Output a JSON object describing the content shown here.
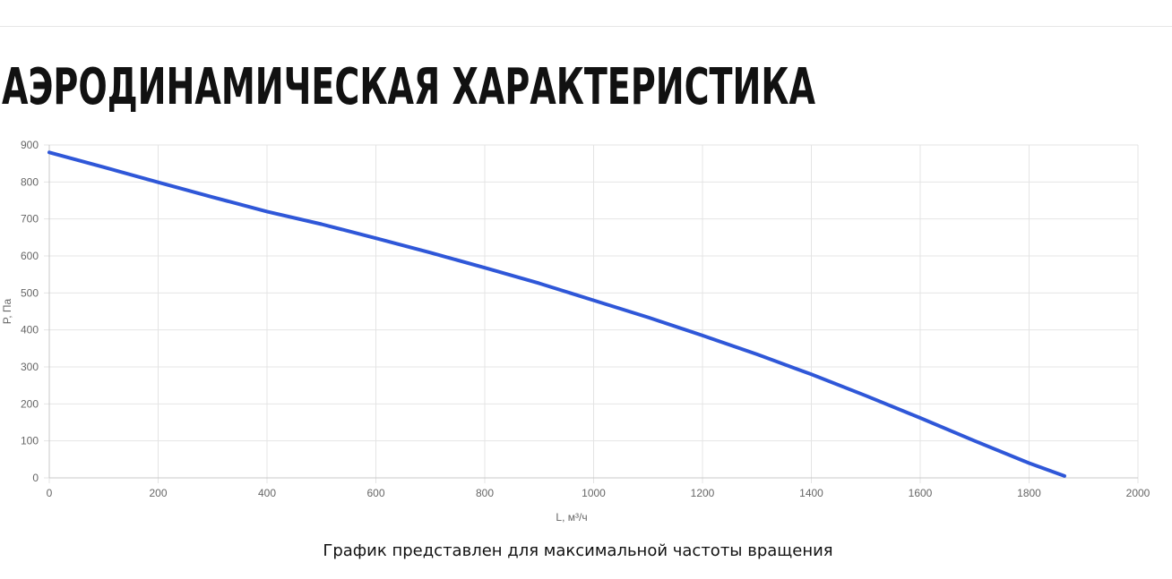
{
  "page": {
    "title": "АЭРОДИНАМИЧЕСКАЯ ХАРАКТЕРИСТИКА",
    "caption": "График представлен для максимальной частоты вращения"
  },
  "chart_data": {
    "type": "line",
    "xlabel": "L, м³/ч",
    "ylabel": "P, Па",
    "xlim": [
      0,
      2000
    ],
    "ylim": [
      0,
      900
    ],
    "xticks": [
      0,
      200,
      400,
      600,
      800,
      1000,
      1200,
      1400,
      1600,
      1800,
      2000
    ],
    "yticks": [
      0,
      100,
      200,
      300,
      400,
      500,
      600,
      700,
      800,
      900
    ],
    "grid": true,
    "legend": "none",
    "series": [
      {
        "color": "#2f57d8",
        "x": [
          0,
          100,
          200,
          300,
          400,
          500,
          600,
          700,
          800,
          900,
          1000,
          1100,
          1200,
          1300,
          1400,
          1500,
          1600,
          1700,
          1800,
          1865
        ],
        "y": [
          880,
          840,
          799,
          759,
          720,
          686,
          648,
          609,
          568,
          526,
          480,
          434,
          385,
          334,
          280,
          222,
          162,
          100,
          40,
          5
        ]
      }
    ]
  }
}
